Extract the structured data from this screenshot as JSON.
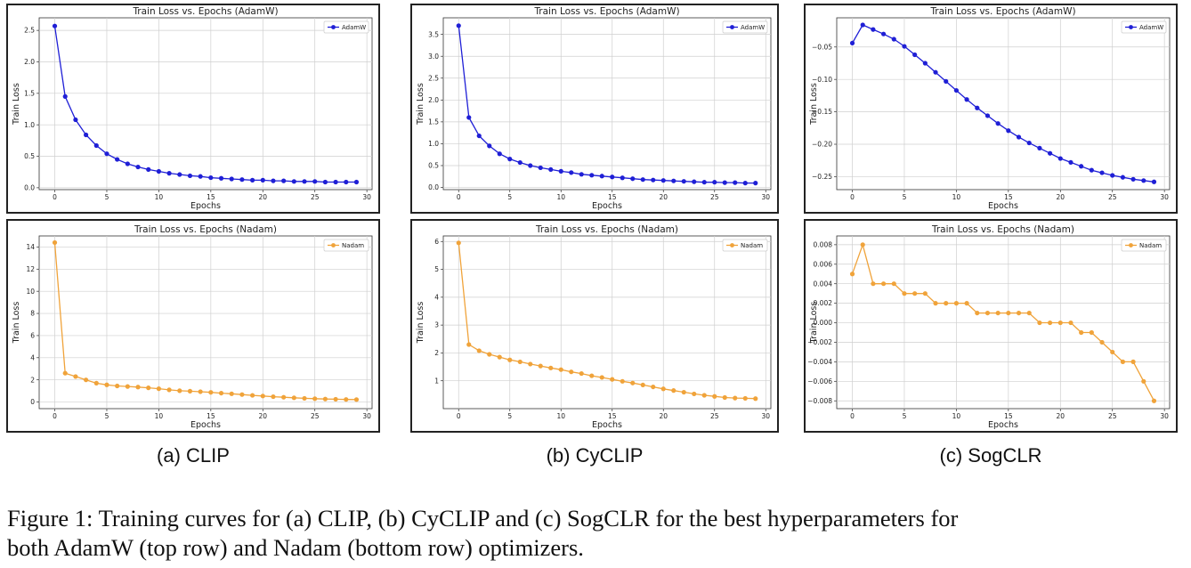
{
  "chart_data": [
    {
      "id": "p0",
      "type": "line",
      "title": "Train Loss vs. Epochs (AdamW)",
      "xlabel": "Epochs",
      "ylabel": "Train Loss",
      "color": "#1f1fd6",
      "marker": "circle",
      "grid": true,
      "legend": "top-right",
      "series": [
        {
          "name": "AdamW",
          "x": [
            0,
            1,
            2,
            3,
            4,
            5,
            6,
            7,
            8,
            9,
            10,
            11,
            12,
            13,
            14,
            15,
            16,
            17,
            18,
            19,
            20,
            21,
            22,
            23,
            24,
            25,
            26,
            27,
            28,
            29
          ],
          "y": [
            2.57,
            1.45,
            1.08,
            0.84,
            0.67,
            0.54,
            0.45,
            0.38,
            0.33,
            0.29,
            0.26,
            0.23,
            0.21,
            0.19,
            0.18,
            0.16,
            0.15,
            0.14,
            0.13,
            0.12,
            0.12,
            0.11,
            0.11,
            0.1,
            0.1,
            0.1,
            0.09,
            0.09,
            0.09,
            0.09
          ]
        }
      ],
      "xlim": [
        -1.5,
        30.5
      ],
      "ylim": [
        -0.03,
        2.7
      ],
      "xticks": [
        0,
        5,
        10,
        15,
        20,
        25,
        30
      ],
      "yticks": [
        0.0,
        0.5,
        1.0,
        1.5,
        2.0,
        2.5
      ],
      "ytick_labels": [
        "0.0",
        "0.5",
        "1.0",
        "1.5",
        "2.0",
        "2.5"
      ]
    },
    {
      "id": "p1",
      "type": "line",
      "title": "Train Loss vs. Epochs (AdamW)",
      "xlabel": "Epochs",
      "ylabel": "Train Loss",
      "color": "#1f1fd6",
      "marker": "circle",
      "grid": true,
      "legend": "top-right",
      "series": [
        {
          "name": "AdamW",
          "x": [
            0,
            1,
            2,
            3,
            4,
            5,
            6,
            7,
            8,
            9,
            10,
            11,
            12,
            13,
            14,
            15,
            16,
            17,
            18,
            19,
            20,
            21,
            22,
            23,
            24,
            25,
            26,
            27,
            28,
            29
          ],
          "y": [
            3.7,
            1.6,
            1.18,
            0.95,
            0.77,
            0.65,
            0.57,
            0.5,
            0.45,
            0.41,
            0.37,
            0.34,
            0.3,
            0.28,
            0.26,
            0.24,
            0.22,
            0.2,
            0.18,
            0.17,
            0.16,
            0.15,
            0.14,
            0.13,
            0.12,
            0.12,
            0.11,
            0.11,
            0.1,
            0.1
          ]
        }
      ],
      "xlim": [
        -1.5,
        30.5
      ],
      "ylim": [
        -0.05,
        3.88
      ],
      "xticks": [
        0,
        5,
        10,
        15,
        20,
        25,
        30
      ],
      "yticks": [
        0.0,
        0.5,
        1.0,
        1.5,
        2.0,
        2.5,
        3.0,
        3.5
      ],
      "ytick_labels": [
        "0.0",
        "0.5",
        "1.0",
        "1.5",
        "2.0",
        "2.5",
        "3.0",
        "3.5"
      ]
    },
    {
      "id": "p2",
      "type": "line",
      "title": "Train Loss vs. Epochs (AdamW)",
      "xlabel": "Epochs",
      "ylabel": "Train Loss",
      "color": "#1f1fd6",
      "marker": "circle",
      "grid": true,
      "legend": "top-right",
      "series": [
        {
          "name": "AdamW",
          "x": [
            0,
            1,
            2,
            3,
            4,
            5,
            6,
            7,
            8,
            9,
            10,
            11,
            12,
            13,
            14,
            15,
            16,
            17,
            18,
            19,
            20,
            21,
            22,
            23,
            24,
            25,
            26,
            27,
            28,
            29
          ],
          "y": [
            -0.044,
            -0.016,
            -0.023,
            -0.03,
            -0.038,
            -0.049,
            -0.062,
            -0.075,
            -0.089,
            -0.103,
            -0.117,
            -0.131,
            -0.144,
            -0.156,
            -0.168,
            -0.179,
            -0.189,
            -0.198,
            -0.206,
            -0.214,
            -0.222,
            -0.228,
            -0.234,
            -0.24,
            -0.244,
            -0.248,
            -0.251,
            -0.254,
            -0.256,
            -0.258
          ]
        }
      ],
      "xlim": [
        -1.5,
        30.5
      ],
      "ylim": [
        -0.27,
        -0.005
      ],
      "xticks": [
        0,
        5,
        10,
        15,
        20,
        25,
        30
      ],
      "yticks": [
        -0.05,
        -0.1,
        -0.15,
        -0.2,
        -0.25
      ],
      "ytick_labels": [
        "−0.05",
        "−0.10",
        "−0.15",
        "−0.20",
        "−0.25"
      ]
    },
    {
      "id": "p3",
      "type": "line",
      "title": "Train Loss vs. Epochs (Nadam)",
      "xlabel": "Epochs",
      "ylabel": "Train Loss",
      "color": "#f0a33a",
      "marker": "circle",
      "grid": true,
      "legend": "top-right",
      "series": [
        {
          "name": "Nadam",
          "x": [
            0,
            1,
            2,
            3,
            4,
            5,
            6,
            7,
            8,
            9,
            10,
            11,
            12,
            13,
            14,
            15,
            16,
            17,
            18,
            19,
            20,
            21,
            22,
            23,
            24,
            25,
            26,
            27,
            28,
            29
          ],
          "y": [
            14.4,
            2.6,
            2.3,
            2.0,
            1.7,
            1.55,
            1.45,
            1.4,
            1.35,
            1.28,
            1.2,
            1.1,
            1.02,
            0.98,
            0.93,
            0.87,
            0.8,
            0.74,
            0.67,
            0.6,
            0.54,
            0.48,
            0.43,
            0.38,
            0.33,
            0.3,
            0.27,
            0.25,
            0.23,
            0.22
          ]
        }
      ],
      "xlim": [
        -1.5,
        30.5
      ],
      "ylim": [
        -0.6,
        15.0
      ],
      "xticks": [
        0,
        5,
        10,
        15,
        20,
        25,
        30
      ],
      "yticks": [
        0,
        2,
        4,
        6,
        8,
        10,
        12,
        14
      ],
      "ytick_labels": [
        "0",
        "2",
        "4",
        "6",
        "8",
        "10",
        "12",
        "14"
      ]
    },
    {
      "id": "p4",
      "type": "line",
      "title": "Train Loss vs. Epochs (Nadam)",
      "xlabel": "Epochs",
      "ylabel": "Train Loss",
      "color": "#f0a33a",
      "marker": "circle",
      "grid": true,
      "legend": "top-right",
      "series": [
        {
          "name": "Nadam",
          "x": [
            0,
            1,
            2,
            3,
            4,
            5,
            6,
            7,
            8,
            9,
            10,
            11,
            12,
            13,
            14,
            15,
            16,
            17,
            18,
            19,
            20,
            21,
            22,
            23,
            24,
            25,
            26,
            27,
            28,
            29
          ],
          "y": [
            5.95,
            2.3,
            2.08,
            1.95,
            1.85,
            1.75,
            1.68,
            1.6,
            1.53,
            1.46,
            1.4,
            1.32,
            1.26,
            1.18,
            1.12,
            1.05,
            0.98,
            0.92,
            0.85,
            0.78,
            0.71,
            0.65,
            0.59,
            0.53,
            0.48,
            0.44,
            0.4,
            0.38,
            0.37,
            0.36
          ]
        }
      ],
      "xlim": [
        -1.5,
        30.5
      ],
      "ylim": [
        0.0,
        6.2
      ],
      "xticks": [
        0,
        5,
        10,
        15,
        20,
        25,
        30
      ],
      "yticks": [
        1,
        2,
        3,
        4,
        5,
        6
      ],
      "ytick_labels": [
        "1",
        "2",
        "3",
        "4",
        "5",
        "6"
      ]
    },
    {
      "id": "p5",
      "type": "line",
      "title": "Train Loss vs. Epochs (Nadam)",
      "xlabel": "Epochs",
      "ylabel": "Train Loss",
      "color": "#f0a33a",
      "marker": "circle",
      "grid": true,
      "legend": "top-right",
      "series": [
        {
          "name": "Nadam",
          "x": [
            0,
            1,
            2,
            3,
            4,
            5,
            6,
            7,
            8,
            9,
            10,
            11,
            12,
            13,
            14,
            15,
            16,
            17,
            18,
            19,
            20,
            21,
            22,
            23,
            24,
            25,
            26,
            27,
            28,
            29
          ],
          "y": [
            0.005,
            0.008,
            0.004,
            0.004,
            0.004,
            0.003,
            0.003,
            0.003,
            0.002,
            0.002,
            0.002,
            0.002,
            0.001,
            0.001,
            0.001,
            0.001,
            0.001,
            0.001,
            0.0,
            0.0,
            0.0,
            0.0,
            -0.001,
            -0.001,
            -0.002,
            -0.003,
            -0.004,
            -0.004,
            -0.006,
            -0.008
          ]
        }
      ],
      "xlim": [
        -1.5,
        30.5
      ],
      "ylim": [
        -0.0088,
        0.0089
      ],
      "xticks": [
        0,
        5,
        10,
        15,
        20,
        25,
        30
      ],
      "yticks": [
        0.008,
        0.006,
        0.004,
        0.002,
        0.0,
        -0.002,
        -0.004,
        -0.006,
        -0.008
      ],
      "ytick_labels": [
        "0.008",
        "0.006",
        "0.004",
        "0.002",
        "0.000",
        "−0.002",
        "−0.004",
        "−0.006",
        "−0.008"
      ]
    }
  ],
  "subcaptions": {
    "a": "(a) CLIP",
    "b": "(b) CyCLIP",
    "c": "(c) SogCLR"
  },
  "caption": {
    "line1": "Figure 1: Training curves for (a) CLIP, (b) CyCLIP and (c) SogCLR for the best hyperparameters for",
    "line2": "both AdamW (top row) and Nadam (bottom row) optimizers."
  }
}
